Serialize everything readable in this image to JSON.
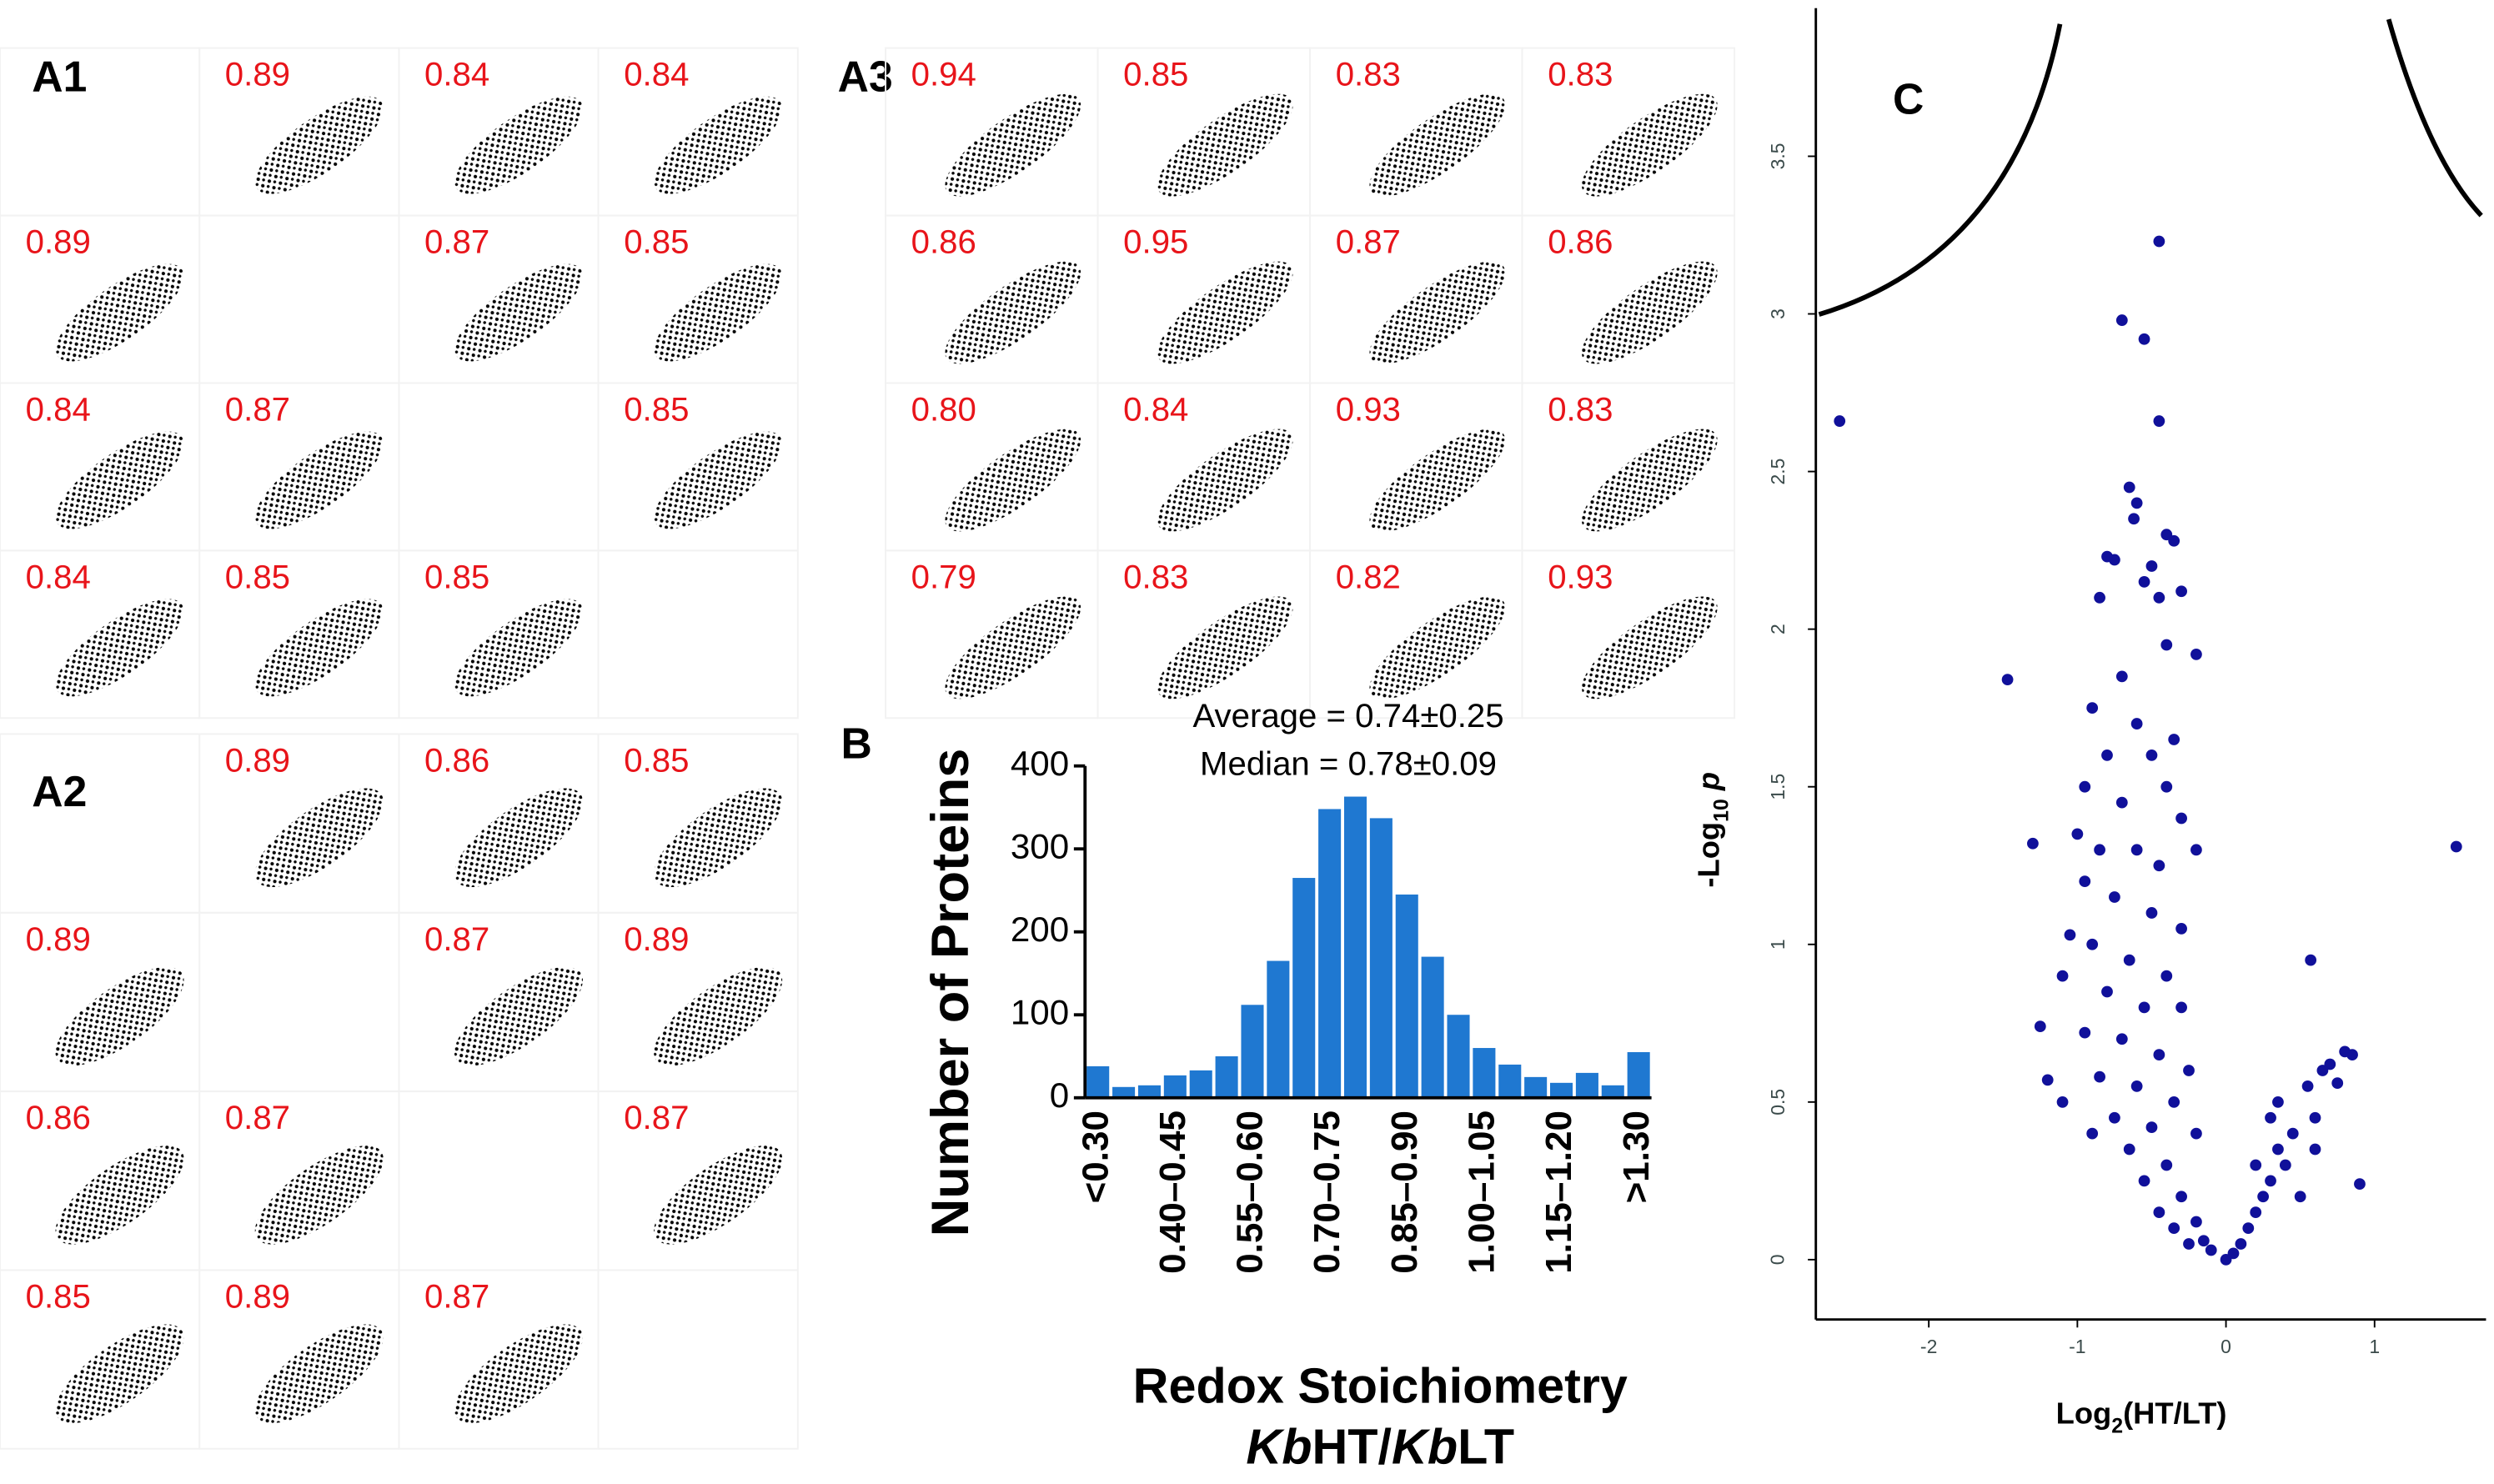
{
  "chart_data": [
    {
      "type": "matrix",
      "title": "A1",
      "values": [
        [
          null,
          0.89,
          0.84,
          0.84
        ],
        [
          0.89,
          null,
          0.87,
          0.85
        ],
        [
          0.84,
          0.87,
          null,
          0.85
        ],
        [
          0.84,
          0.85,
          0.85,
          null
        ]
      ]
    },
    {
      "type": "matrix",
      "title": "A2",
      "values": [
        [
          null,
          0.89,
          0.86,
          0.85
        ],
        [
          0.89,
          null,
          0.87,
          0.89
        ],
        [
          0.86,
          0.87,
          null,
          0.87
        ],
        [
          0.85,
          0.89,
          0.87,
          null
        ]
      ]
    },
    {
      "type": "matrix",
      "title": "A3",
      "values": [
        [
          0.94,
          0.85,
          0.83,
          0.83
        ],
        [
          0.86,
          0.95,
          0.87,
          0.86
        ],
        [
          0.8,
          0.84,
          0.93,
          0.83
        ],
        [
          0.79,
          0.83,
          0.82,
          0.93
        ]
      ],
      "value_labels": [
        [
          "0.94",
          "0.85",
          "0.83",
          "0.83"
        ],
        [
          "0.86",
          "0.95",
          "0.87",
          "0.86"
        ],
        [
          "0.80",
          "0.84",
          "0.93",
          "0.83"
        ],
        [
          "0.79",
          "0.83",
          "0.82",
          "0.93"
        ]
      ]
    },
    {
      "type": "bar",
      "title": "B",
      "annotations": [
        "Average = 0.74±0.25",
        "Median = 0.78±0.09"
      ],
      "categories": [
        "<0.30",
        null,
        null,
        "0.40–0.45",
        null,
        null,
        "0.55–0.60",
        null,
        null,
        "0.70–0.75",
        null,
        null,
        "0.85–0.90",
        null,
        null,
        "1.00–1.05",
        null,
        null,
        "1.15–1.20",
        null,
        null,
        ">1.30"
      ],
      "values": [
        38,
        13,
        15,
        27,
        33,
        50,
        112,
        165,
        265,
        348,
        363,
        337,
        245,
        170,
        100,
        60,
        40,
        25,
        18,
        30,
        15,
        55
      ],
      "color": "#1f78d1",
      "ylim": [
        0,
        400
      ],
      "yticks": [
        0,
        100,
        200,
        300,
        400
      ],
      "y_label": "Number of Proteins",
      "x_label": "Redox Stoichiometry",
      "x_label_2": [
        "Kb",
        "HT/",
        "Kb",
        "LT"
      ]
    },
    {
      "type": "scatter",
      "title": "C",
      "x": [
        -2.6,
        -0.45,
        -0.7,
        -0.55,
        -0.45,
        -1.47,
        -1.3,
        1.55,
        0.57,
        0.9,
        0.8,
        0.7,
        -0.65,
        -0.6,
        -0.62,
        -0.4,
        -0.35,
        -0.8,
        -0.75,
        -0.5,
        -0.3,
        -0.45,
        -0.55,
        -0.85,
        -0.4,
        -0.2,
        -0.7,
        -0.9,
        -0.6,
        -0.35,
        -0.8,
        -0.5,
        -0.95,
        -0.7,
        -0.4,
        -0.3,
        -1.0,
        -0.85,
        -0.6,
        -0.45,
        -0.2,
        -0.95,
        -0.75,
        -0.5,
        -0.3,
        -1.05,
        -0.9,
        -0.65,
        -0.4,
        -1.1,
        -0.8,
        -0.55,
        -0.3,
        -1.25,
        -0.95,
        -0.7,
        -0.45,
        -0.25,
        -0.85,
        -1.2,
        -0.6,
        -0.35,
        -1.1,
        -0.75,
        -0.5,
        -0.2,
        -0.9,
        -0.65,
        -0.4,
        -0.55,
        -0.3,
        -0.45,
        -0.2,
        -0.35,
        -0.15,
        -0.25,
        -0.1,
        0,
        0.05,
        0.1,
        0.15,
        0.2,
        0.25,
        0.3,
        0.2,
        0.35,
        0.4,
        0.45,
        0.3,
        0.6,
        0.55,
        0.65,
        0.75,
        0.85,
        0.6,
        0.5,
        0.35
      ],
      "values": [
        2.66,
        3.23,
        2.98,
        2.92,
        2.66,
        1.84,
        1.32,
        1.31,
        0.95,
        0.24,
        0.66,
        0.62,
        2.45,
        2.4,
        2.35,
        2.3,
        2.28,
        2.23,
        2.22,
        2.2,
        2.12,
        2.1,
        2.15,
        2.1,
        1.95,
        1.92,
        1.85,
        1.75,
        1.7,
        1.65,
        1.6,
        1.6,
        1.5,
        1.45,
        1.5,
        1.4,
        1.35,
        1.3,
        1.3,
        1.25,
        1.3,
        1.2,
        1.15,
        1.1,
        1.05,
        1.03,
        1.0,
        0.95,
        0.9,
        0.9,
        0.85,
        0.8,
        0.8,
        0.74,
        0.72,
        0.7,
        0.65,
        0.6,
        0.58,
        0.57,
        0.55,
        0.5,
        0.5,
        0.45,
        0.42,
        0.4,
        0.4,
        0.35,
        0.3,
        0.25,
        0.2,
        0.15,
        0.12,
        0.1,
        0.06,
        0.05,
        0.03,
        0,
        0.02,
        0.05,
        0.1,
        0.15,
        0.2,
        0.25,
        0.3,
        0.35,
        0.3,
        0.4,
        0.45,
        0.45,
        0.55,
        0.6,
        0.56,
        0.65,
        0.35,
        0.2,
        0.5
      ],
      "color": "#10109a",
      "xlim": [
        -2.76,
        1.75
      ],
      "xticks": [
        -2,
        -1,
        0,
        1
      ],
      "ylim": [
        -0.19,
        3.97
      ],
      "yticks": [
        0,
        0.5,
        1,
        1.5,
        2,
        2.5,
        3,
        3.5
      ],
      "x_label": [
        "Log",
        "2",
        "(HT/LT)"
      ],
      "y_label": [
        "-Log",
        "10",
        " ",
        "p"
      ]
    }
  ]
}
